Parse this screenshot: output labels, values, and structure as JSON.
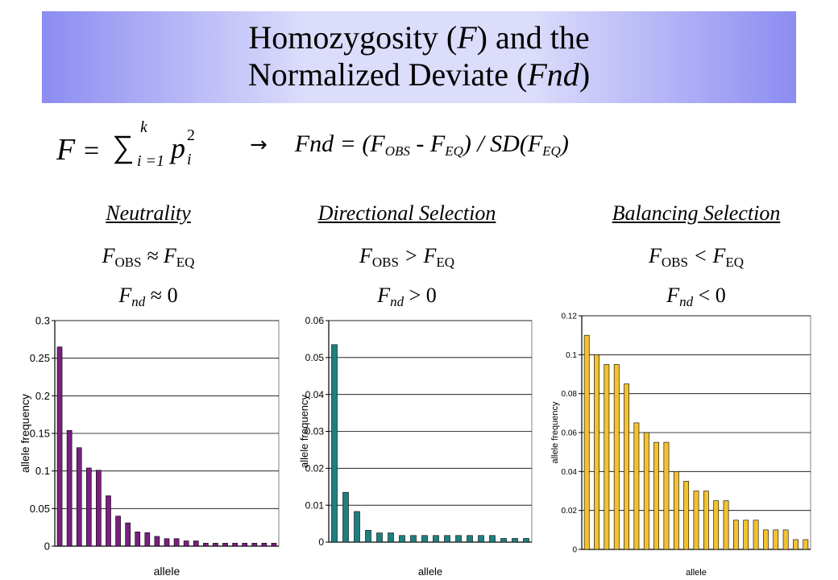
{
  "title": {
    "line1_pre": "Homozygosity (",
    "line1_var": "F",
    "line1_post": ") and the",
    "line2_pre": "Normalized Deviate (",
    "line2_var": "Fnd",
    "line2_post": ")"
  },
  "formula": {
    "lhs_var": "F",
    "equals": "=",
    "sum_upper": "k",
    "sum_lower": "i =1",
    "term": "p",
    "term_sub": "i",
    "term_sup": "2",
    "arrow": "→",
    "fnd_expr_1": "Fnd = (F",
    "sub_obs": "OBS",
    "fnd_expr_2": " - F",
    "sub_eq": "EQ",
    "fnd_expr_3": ") / SD(F",
    "fnd_expr_4": ")"
  },
  "panels": [
    {
      "heading": "Neutrality",
      "rel": " ≈ F",
      "fnd_rel": " ≈ 0"
    },
    {
      "heading": "Directional Selection",
      "rel": " > F",
      "fnd_rel": " > 0"
    },
    {
      "heading": "Balancing Selection",
      "rel": " < F",
      "fnd_rel": " < 0"
    }
  ],
  "labels": {
    "F": "F",
    "OBS": "OBS",
    "EQ": "EQ",
    "nd": "nd"
  },
  "chart_data": [
    {
      "type": "bar",
      "xlabel": "allele",
      "ylabel": "allele frequency",
      "ylim": [
        0,
        0.3
      ],
      "yticks": [
        0,
        0.05,
        0.1,
        0.15,
        0.2,
        0.25,
        0.3
      ],
      "yticklabels": [
        "0",
        "0.05",
        "0.1",
        "0.15",
        "0.2",
        "0.25",
        "0.3"
      ],
      "bar_color": "#7b1f80",
      "grid": true,
      "values": [
        0.265,
        0.154,
        0.131,
        0.104,
        0.101,
        0.067,
        0.04,
        0.031,
        0.019,
        0.018,
        0.013,
        0.01,
        0.01,
        0.007,
        0.007,
        0.004,
        0.004,
        0.004,
        0.004,
        0.004,
        0.004,
        0.004,
        0.004
      ]
    },
    {
      "type": "bar",
      "xlabel": "allele",
      "ylabel": "allele frequency",
      "ylim": [
        0,
        0.06
      ],
      "yticks": [
        0,
        0.01,
        0.02,
        0.03,
        0.04,
        0.05,
        0.06
      ],
      "yticklabels": [
        "0",
        "0.01",
        "0.02",
        "0.03",
        "0.04",
        "0.05",
        "0.06"
      ],
      "bar_color": "#1f7f7f",
      "grid": true,
      "values": [
        0.0535,
        0.0135,
        0.0083,
        0.0032,
        0.0025,
        0.0025,
        0.0018,
        0.0018,
        0.0018,
        0.0018,
        0.0018,
        0.0018,
        0.0018,
        0.0018,
        0.0018,
        0.001,
        0.001,
        0.001
      ]
    },
    {
      "type": "bar",
      "xlabel": "allele",
      "ylabel": "allele frequency",
      "ylim": [
        0,
        0.12
      ],
      "yticks": [
        0,
        0.02,
        0.04,
        0.06,
        0.08,
        0.1,
        0.12
      ],
      "yticklabels": [
        "0",
        "0.02",
        "0.04",
        "0.06",
        "0.08",
        "0.1",
        "0.12"
      ],
      "bar_color": "#f2c230",
      "grid": true,
      "values": [
        0.11,
        0.1,
        0.095,
        0.095,
        0.085,
        0.065,
        0.06,
        0.055,
        0.055,
        0.04,
        0.035,
        0.03,
        0.03,
        0.025,
        0.025,
        0.015,
        0.015,
        0.015,
        0.01,
        0.01,
        0.01,
        0.005,
        0.005
      ]
    }
  ]
}
